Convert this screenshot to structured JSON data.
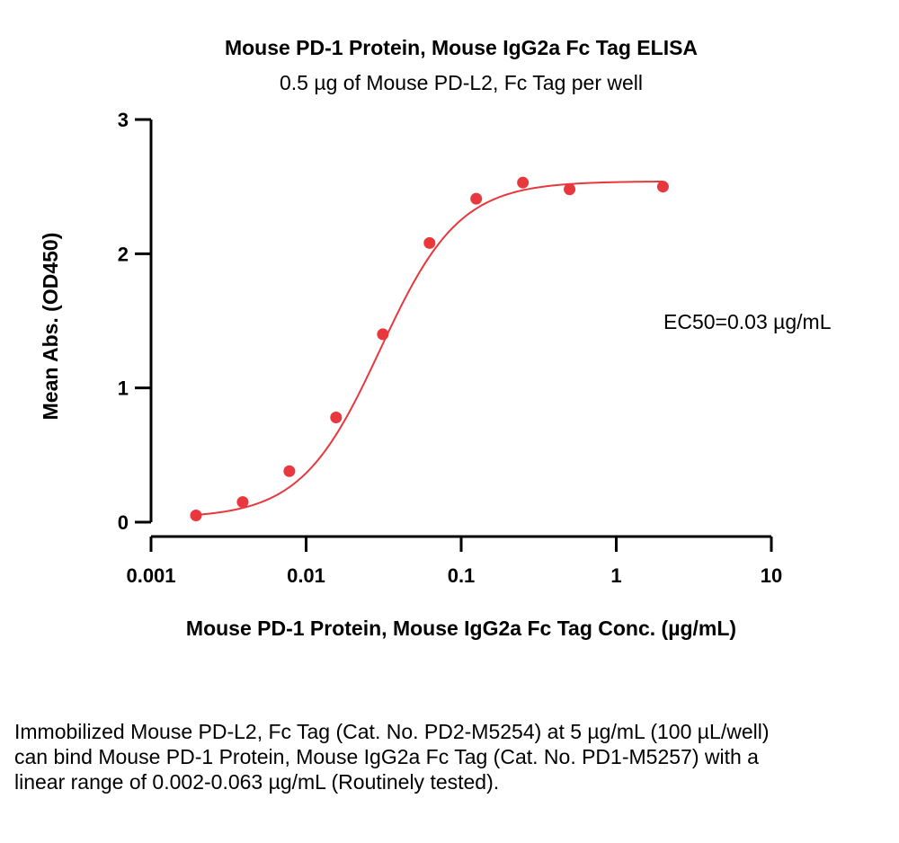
{
  "chart_data": {
    "type": "scatter",
    "title": "Mouse PD-1 Protein, Mouse IgG2a Fc Tag ELISA",
    "subtitle": "0.5 µg of Mouse PD-L2, Fc Tag per well",
    "xlabel": "Mouse PD-1 Protein, Mouse IgG2a Fc Tag Conc. (µg/mL)",
    "ylabel": "Mean Abs. (OD450)",
    "xscale": "log",
    "xlim": [
      0.001,
      10
    ],
    "ylim": [
      0,
      3
    ],
    "x_ticks": [
      0.001,
      0.01,
      0.1,
      1,
      10
    ],
    "x_tick_labels": [
      "0.001",
      "0.01",
      "0.1",
      "1",
      "10"
    ],
    "y_ticks": [
      0,
      1,
      2,
      3
    ],
    "y_tick_labels": [
      "0",
      "1",
      "2",
      "3"
    ],
    "grid": false,
    "legend": "none",
    "color": "#e8383d",
    "series": [
      {
        "x": [
          0.00195,
          0.0039,
          0.0078,
          0.0156,
          0.03125,
          0.0625,
          0.125,
          0.25,
          0.5,
          2.0
        ],
        "y": [
          0.05,
          0.15,
          0.38,
          0.78,
          1.4,
          2.08,
          2.41,
          2.53,
          2.48,
          2.5
        ]
      }
    ],
    "fit": {
      "type": "4PL",
      "bottom": 0.03,
      "top": 2.54,
      "ec50": 0.03,
      "hill": 1.7
    },
    "annotation": "EC50=0.03 µg/mL"
  },
  "caption": "Immobilized Mouse PD-L2, Fc Tag (Cat. No. PD2-M5254) at 5 µg/mL (100 µL/well) can bind Mouse PD-1 Protein, Mouse IgG2a Fc Tag (Cat. No. PD1-M5257) with a linear range of 0.002-0.063 µg/mL (Routinely tested)."
}
